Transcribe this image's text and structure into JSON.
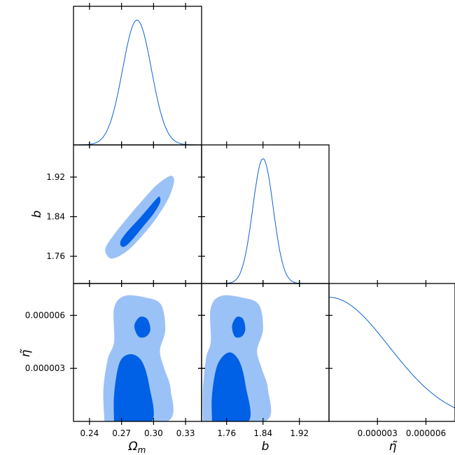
{
  "chart_data": {
    "type": "triangle-corner-plot",
    "colors": {
      "outer": "#9bc2f6",
      "inner": "#0060e6",
      "line": "#0a62d4"
    },
    "parameters": [
      {
        "key": "omega_m",
        "label": "Ω",
        "label_sub": "m",
        "range": [
          0.225,
          0.345
        ],
        "ticks": [
          0.24,
          0.27,
          0.3,
          0.33
        ],
        "tick_labels": [
          "0.24",
          "0.27",
          "0.30",
          "0.33"
        ]
      },
      {
        "key": "b",
        "label": "b",
        "range": [
          1.705,
          1.985
        ],
        "ticks": [
          1.76,
          1.84,
          1.92
        ],
        "tick_labels": [
          "1.76",
          "1.84",
          "1.92"
        ]
      },
      {
        "key": "eta",
        "label": "η̃",
        "range": [
          0,
          7.8e-06
        ],
        "ticks": [
          3e-06,
          6e-06
        ],
        "tick_labels": [
          "0.000003",
          "0.000006"
        ]
      }
    ],
    "marginals": [
      {
        "param": "omega_m",
        "type": "gaussian",
        "mean": 0.2845,
        "sigma": 0.0135
      },
      {
        "param": "b",
        "type": "gaussian",
        "mean": 1.84,
        "sigma": 0.0225
      },
      {
        "param": "eta",
        "type": "half-gaussian",
        "sigma": 3.7e-06
      }
    ],
    "contours": [
      {
        "x": "omega_m",
        "y": "b",
        "level": "95%",
        "points": [
          [
            0.263,
            1.756
          ],
          [
            0.257,
            1.76
          ],
          [
            0.255,
            1.777
          ],
          [
            0.263,
            1.804
          ],
          [
            0.276,
            1.839
          ],
          [
            0.29,
            1.874
          ],
          [
            0.303,
            1.904
          ],
          [
            0.314,
            1.921
          ],
          [
            0.318,
            1.921
          ],
          [
            0.319,
            1.908
          ],
          [
            0.314,
            1.877
          ],
          [
            0.303,
            1.838
          ],
          [
            0.29,
            1.803
          ],
          [
            0.276,
            1.772
          ]
        ]
      },
      {
        "x": "omega_m",
        "y": "b",
        "level": "68%",
        "points": [
          [
            0.27,
            1.78
          ],
          [
            0.269,
            1.79
          ],
          [
            0.275,
            1.809
          ],
          [
            0.287,
            1.837
          ],
          [
            0.297,
            1.862
          ],
          [
            0.304,
            1.879
          ],
          [
            0.306,
            1.879
          ],
          [
            0.306,
            1.868
          ],
          [
            0.3,
            1.846
          ],
          [
            0.291,
            1.822
          ],
          [
            0.281,
            1.796
          ],
          [
            0.274,
            1.781
          ]
        ]
      },
      {
        "x": "omega_m",
        "y": "eta",
        "level": "95%",
        "points": [
          [
            0.254,
            0
          ],
          [
            0.253,
            1.8e-06
          ],
          [
            0.257,
            3.5e-06
          ],
          [
            0.263,
            4.5e-06
          ],
          [
            0.263,
            6.4e-06
          ],
          [
            0.273,
            7.1e-06
          ],
          [
            0.293,
            7e-06
          ],
          [
            0.307,
            6.6e-06
          ],
          [
            0.311,
            5.2e-06
          ],
          [
            0.306,
            4e-06
          ],
          [
            0.31,
            3e-06
          ],
          [
            0.316,
            1.8e-06
          ],
          [
            0.313,
            0
          ],
          [
            0.254,
            0
          ]
        ]
      },
      {
        "x": "omega_m",
        "y": "eta",
        "level": "68%",
        "points": [
          [
            0.263,
            0
          ],
          [
            0.263,
            1.5e-06
          ],
          [
            0.268,
            3.3e-06
          ],
          [
            0.278,
            3.8e-06
          ],
          [
            0.289,
            3.4e-06
          ],
          [
            0.296,
            2e-06
          ],
          [
            0.298,
            0
          ],
          [
            0.263,
            0
          ]
        ]
      },
      {
        "x": "omega_m",
        "y": "eta",
        "level": "68%",
        "points": [
          [
            0.282,
            5.4e-06
          ],
          [
            0.287,
            5.9e-06
          ],
          [
            0.294,
            5.8e-06
          ],
          [
            0.297,
            5.2e-06
          ],
          [
            0.293,
            4.8e-06
          ],
          [
            0.286,
            4.8e-06
          ]
        ]
      },
      {
        "x": "b",
        "y": "eta",
        "level": "95%",
        "points": [
          [
            1.708,
            0
          ],
          [
            1.708,
            1.8e-06
          ],
          [
            1.715,
            3.6e-06
          ],
          [
            1.725,
            4.5e-06
          ],
          [
            1.725,
            6.4e-06
          ],
          [
            1.748,
            7.1e-06
          ],
          [
            1.795,
            7e-06
          ],
          [
            1.831,
            6.6e-06
          ],
          [
            1.84,
            5.2e-06
          ],
          [
            1.827,
            4e-06
          ],
          [
            1.837,
            3e-06
          ],
          [
            1.851,
            1.8e-06
          ],
          [
            1.845,
            0
          ],
          [
            1.708,
            0
          ]
        ]
      },
      {
        "x": "b",
        "y": "eta",
        "level": "68%",
        "points": [
          [
            1.728,
            0
          ],
          [
            1.728,
            1.5e-06
          ],
          [
            1.74,
            3.2e-06
          ],
          [
            1.765,
            3.9e-06
          ],
          [
            1.788,
            3.4e-06
          ],
          [
            1.802,
            2e-06
          ],
          [
            1.808,
            0
          ],
          [
            1.728,
            0
          ]
        ]
      },
      {
        "x": "b",
        "y": "eta",
        "level": "68%",
        "points": [
          [
            1.772,
            5.4e-06
          ],
          [
            1.782,
            5.9e-06
          ],
          [
            1.796,
            5.8e-06
          ],
          [
            1.801,
            5.2e-06
          ],
          [
            1.793,
            4.8e-06
          ],
          [
            1.778,
            4.8e-06
          ]
        ]
      }
    ]
  }
}
